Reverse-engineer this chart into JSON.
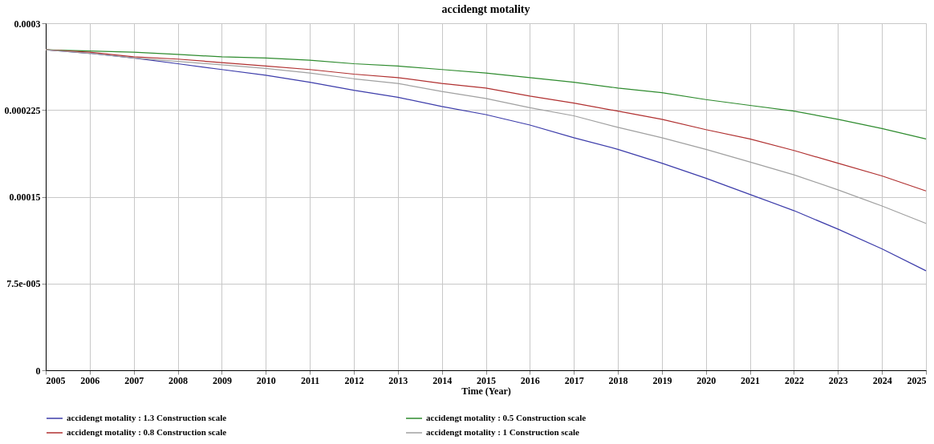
{
  "chart_data": {
    "type": "line",
    "title": "accidengt motality",
    "xlabel": "Time (Year)",
    "x": [
      2005,
      2006,
      2007,
      2008,
      2009,
      2010,
      2011,
      2012,
      2013,
      2014,
      2015,
      2016,
      2017,
      2018,
      2019,
      2020,
      2021,
      2022,
      2023,
      2024,
      2025
    ],
    "series": [
      {
        "name": "accidengt motality : 1.3 Construction scale",
        "color": "#3c3caa",
        "values": [
          0.000277,
          0.000274,
          0.00027,
          0.000265,
          0.00026,
          0.000255,
          0.000249,
          0.000242,
          0.000236,
          0.000228,
          0.000221,
          0.000212,
          0.000201,
          0.000191,
          0.000179,
          0.000166,
          0.000152,
          0.000138,
          0.000122,
          0.000105,
          8.6e-05
        ]
      },
      {
        "name": "accidengt motality : 0.5 Construction scale",
        "color": "#2e8b2e",
        "values": [
          0.000277,
          0.000276,
          0.000275,
          0.000273,
          0.000271,
          0.00027,
          0.000268,
          0.000265,
          0.000263,
          0.00026,
          0.000257,
          0.000253,
          0.000249,
          0.000244,
          0.00024,
          0.000234,
          0.000229,
          0.000224,
          0.000217,
          0.000209,
          0.0002
        ]
      },
      {
        "name": "accidengt motality : 0.8 Construction scale",
        "color": "#b03030",
        "values": [
          0.000277,
          0.000275,
          0.000271,
          0.000269,
          0.000266,
          0.000263,
          0.00026,
          0.000256,
          0.000253,
          0.000248,
          0.000244,
          0.000237,
          0.000231,
          0.000224,
          0.000217,
          0.000208,
          0.0002,
          0.00019,
          0.000179,
          0.000168,
          0.000155
        ]
      },
      {
        "name": "accidengt motality : 1 Construction scale",
        "color": "#a0a0a0",
        "values": [
          0.000277,
          0.000274,
          0.00027,
          0.000267,
          0.000264,
          0.000261,
          0.000257,
          0.000252,
          0.000248,
          0.000241,
          0.000235,
          0.000227,
          0.00022,
          0.00021,
          0.000201,
          0.000191,
          0.00018,
          0.000169,
          0.000156,
          0.000142,
          0.000127
        ]
      }
    ],
    "xlim": [
      2005,
      2025
    ],
    "xticks": [
      2005,
      2006,
      2007,
      2008,
      2009,
      2010,
      2011,
      2012,
      2013,
      2014,
      2015,
      2016,
      2017,
      2018,
      2019,
      2020,
      2021,
      2022,
      2023,
      2024,
      2025
    ],
    "ylim": [
      0,
      0.0003
    ],
    "yticks": [
      0,
      {
        "value": 7.5e-05,
        "label": "7.5e-005"
      },
      0.00015,
      0.000225,
      0.0003
    ],
    "grid": true,
    "legend": "bottom"
  }
}
